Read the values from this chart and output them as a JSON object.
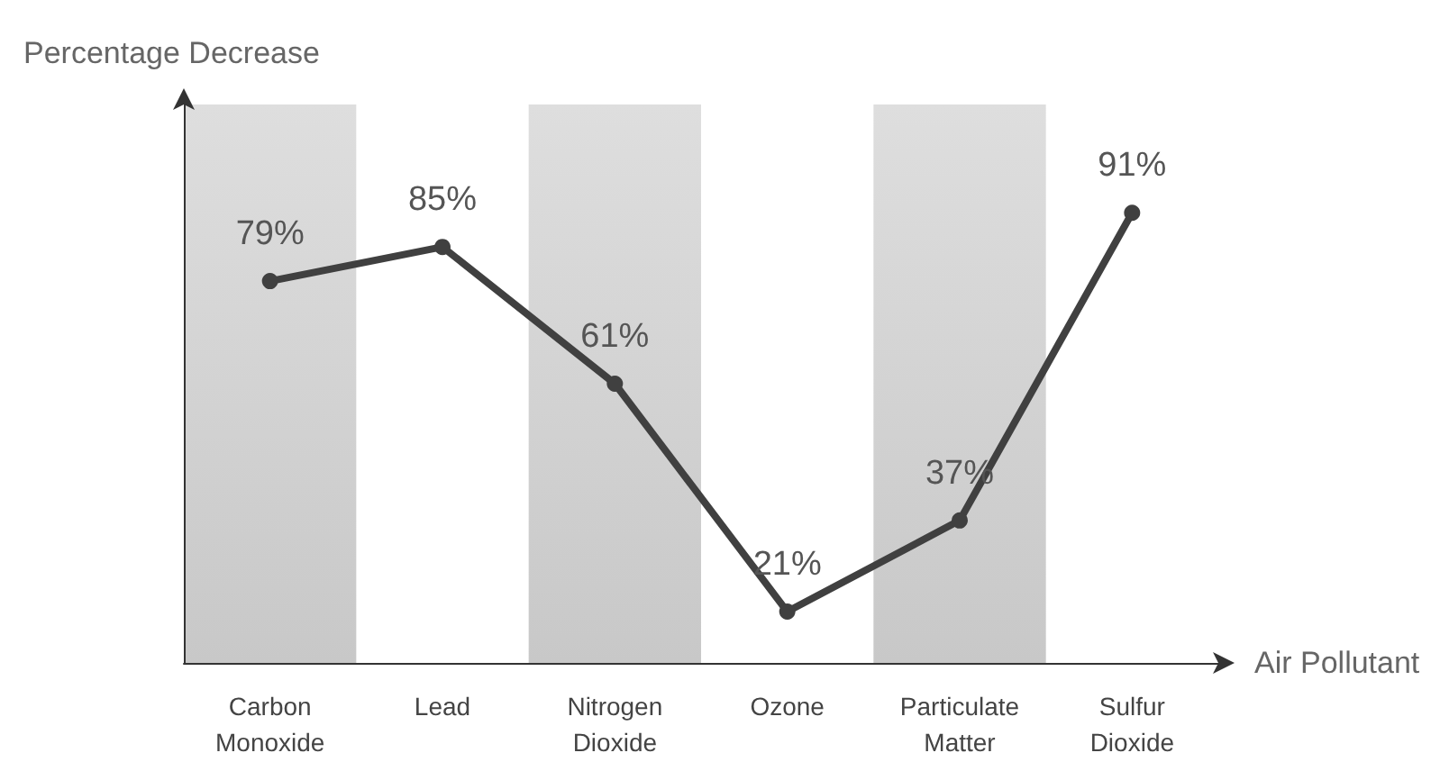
{
  "chart_data": {
    "type": "line",
    "xlabel": "Air Pollutant",
    "ylabel": "Percentage Decrease",
    "categories": [
      "Carbon\nMonoxide",
      "Lead",
      "Nitrogen\nDioxide",
      "Ozone",
      "Particulate\nMatter",
      "Sulfur\nDioxide"
    ],
    "series": [
      {
        "color": "#404040",
        "values": [
          79,
          85,
          61,
          21,
          37,
          91
        ],
        "value_labels": [
          "79%",
          "85%",
          "61%",
          "21%",
          "37%",
          "91%"
        ]
      }
    ],
    "bands": [
      {
        "axis": "x",
        "from": "Carbon\nMonoxide",
        "to": "Carbon\nMonoxide",
        "color": "#c8c8c8"
      },
      {
        "axis": "x",
        "from": "Nitrogen\nDioxide",
        "to": "Nitrogen\nDioxide",
        "color": "#c8c8c8"
      },
      {
        "axis": "x",
        "from": "Particulate\nMatter",
        "to": "Particulate\nMatter",
        "color": "#c8c8c8"
      }
    ],
    "ylim": [
      12,
      110
    ],
    "tick_labels": "x",
    "marker": "circle",
    "line_style": "solid",
    "grid": false
  }
}
